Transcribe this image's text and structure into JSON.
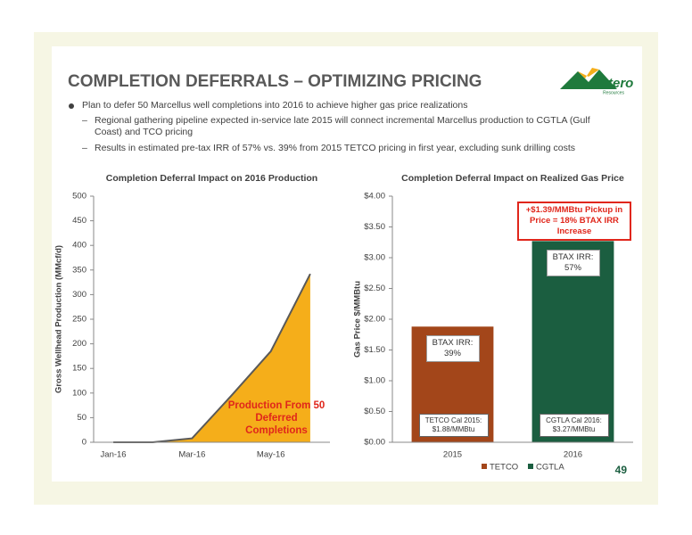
{
  "slide": {
    "title": "COMPLETION DEFERRALS – OPTIMIZING PRICING",
    "logo": {
      "name": "Antero",
      "subname": "Resources"
    },
    "bullets": [
      {
        "text": "Plan to defer 50 Marcellus well completions into 2016 to achieve higher gas price realizations",
        "sub": [
          "Regional gathering pipeline expected in-service late 2015 will connect incremental Marcellus production to CGTLA (Gulf Coast) and TCO pricing",
          "Results in estimated pre-tax IRR of 57% vs. 39% from 2015 TETCO pricing in first year, excluding sunk drilling costs"
        ]
      }
    ],
    "page_number": "49"
  },
  "chart_data": [
    {
      "type": "area",
      "title": "Completion Deferral Impact on 2016 Production",
      "y_label": "Gross Wellhead Production (MMcf/d)",
      "categories": [
        "Jan-16",
        null,
        "Mar-16",
        null,
        "May-16",
        null
      ],
      "values": [
        0,
        0,
        8,
        95,
        185,
        342
      ],
      "color": "#f5ae1a",
      "line_color": "#595959",
      "ylim": [
        0,
        500
      ],
      "yticks": [
        0,
        50,
        100,
        150,
        200,
        250,
        300,
        350,
        400,
        450,
        500
      ],
      "annotation": "Production From 50 Deferred Completions"
    },
    {
      "type": "bar",
      "title": "Completion Deferral Impact on Realized Gas Price",
      "y_label": "Gas Price $/MMBtu",
      "categories": [
        "2015",
        "2016"
      ],
      "series": [
        {
          "name": "TETCO",
          "color": "#a3461a",
          "values": [
            1.88,
            null
          ],
          "value_labels": [
            "TETCO Cal 2015: $1.88/MMBtu",
            null
          ],
          "annotations": [
            "BTAX IRR: 39%",
            null
          ]
        },
        {
          "name": "CGTLA",
          "color": "#1b5e40",
          "values": [
            null,
            3.27
          ],
          "value_labels": [
            null,
            "CGTLA Cal 2016: $3.27/MMBtu"
          ],
          "annotations": [
            null,
            "BTAX IRR: 57%"
          ]
        }
      ],
      "ylim": [
        0,
        4
      ],
      "yticks": [
        {
          "value": 0,
          "label": "$0.00"
        },
        {
          "value": 0.5,
          "label": "$0.50"
        },
        {
          "value": 1,
          "label": "$1.00"
        },
        {
          "value": 1.5,
          "label": "$1.50"
        },
        {
          "value": 2,
          "label": "$2.00"
        },
        {
          "value": 2.5,
          "label": "$2.50"
        },
        {
          "value": 3,
          "label": "$3.00"
        },
        {
          "value": 3.5,
          "label": "$3.50"
        },
        {
          "value": 4,
          "label": "$4.00"
        }
      ],
      "callout": "+$1.39/MMBtu Pickup in Price = 18% BTAX IRR Increase",
      "legend": "bottom"
    }
  ]
}
